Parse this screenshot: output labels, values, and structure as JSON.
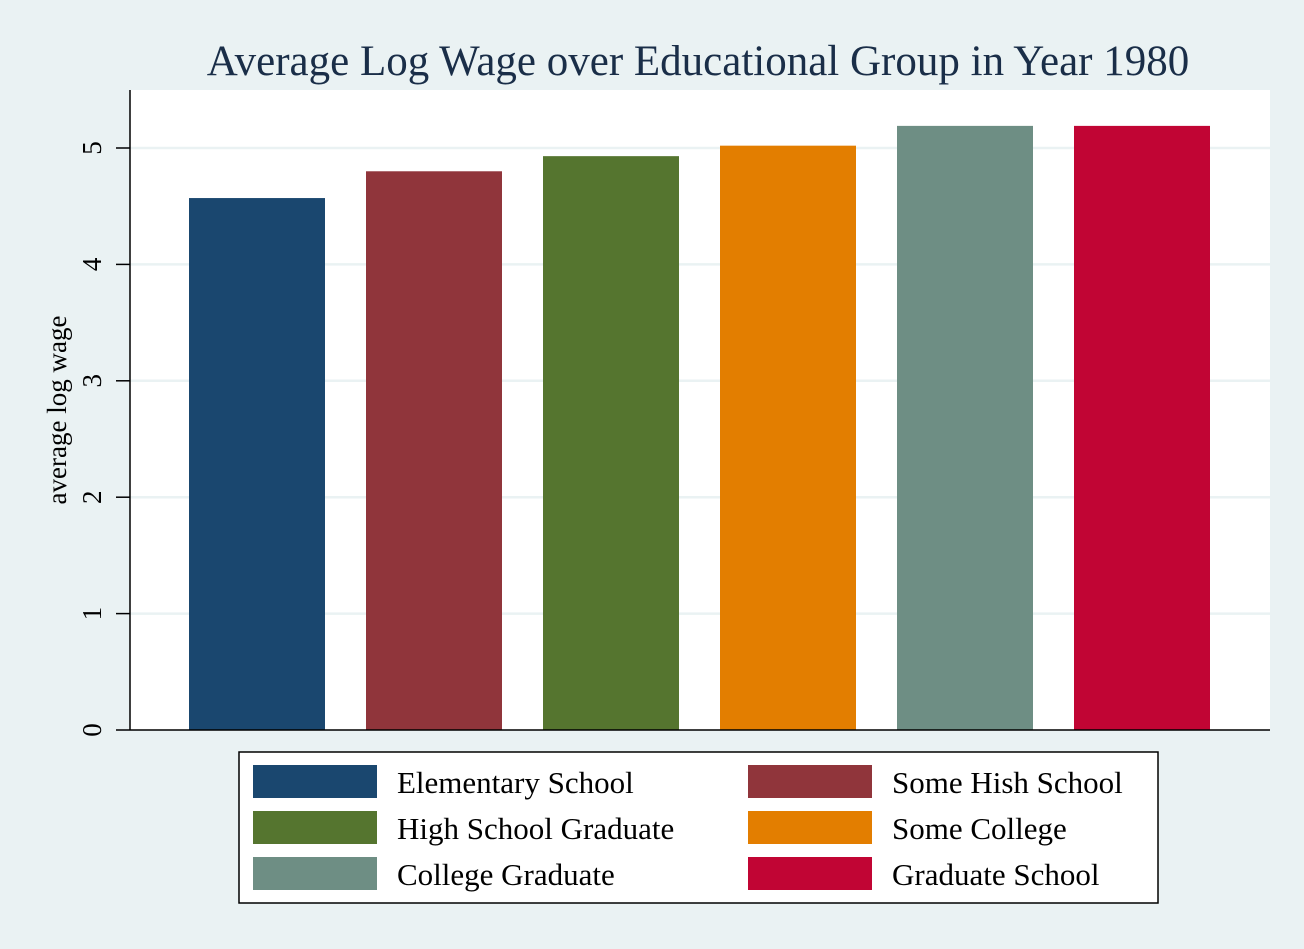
{
  "chart_data": {
    "type": "bar",
    "title": "Average Log Wage over Educational Group in Year 1980",
    "xlabel": "",
    "ylabel": "average log wage",
    "ylim": [
      0,
      5.5
    ],
    "yticks": [
      "0",
      "1",
      "2",
      "3",
      "4",
      "5"
    ],
    "grid": true,
    "legend_position": "bottom",
    "series": [
      {
        "name": "Elementary School",
        "value": 4.57,
        "color": "#1a476f"
      },
      {
        "name": "Some Hish School",
        "value": 4.8,
        "color": "#90353b"
      },
      {
        "name": "High School Graduate",
        "value": 4.93,
        "color": "#55752f"
      },
      {
        "name": "Some College",
        "value": 5.02,
        "color": "#e37e00"
      },
      {
        "name": "College Graduate",
        "value": 5.19,
        "color": "#6e8e84"
      },
      {
        "name": "Graduate School",
        "value": 5.19,
        "color": "#c10534"
      }
    ]
  }
}
